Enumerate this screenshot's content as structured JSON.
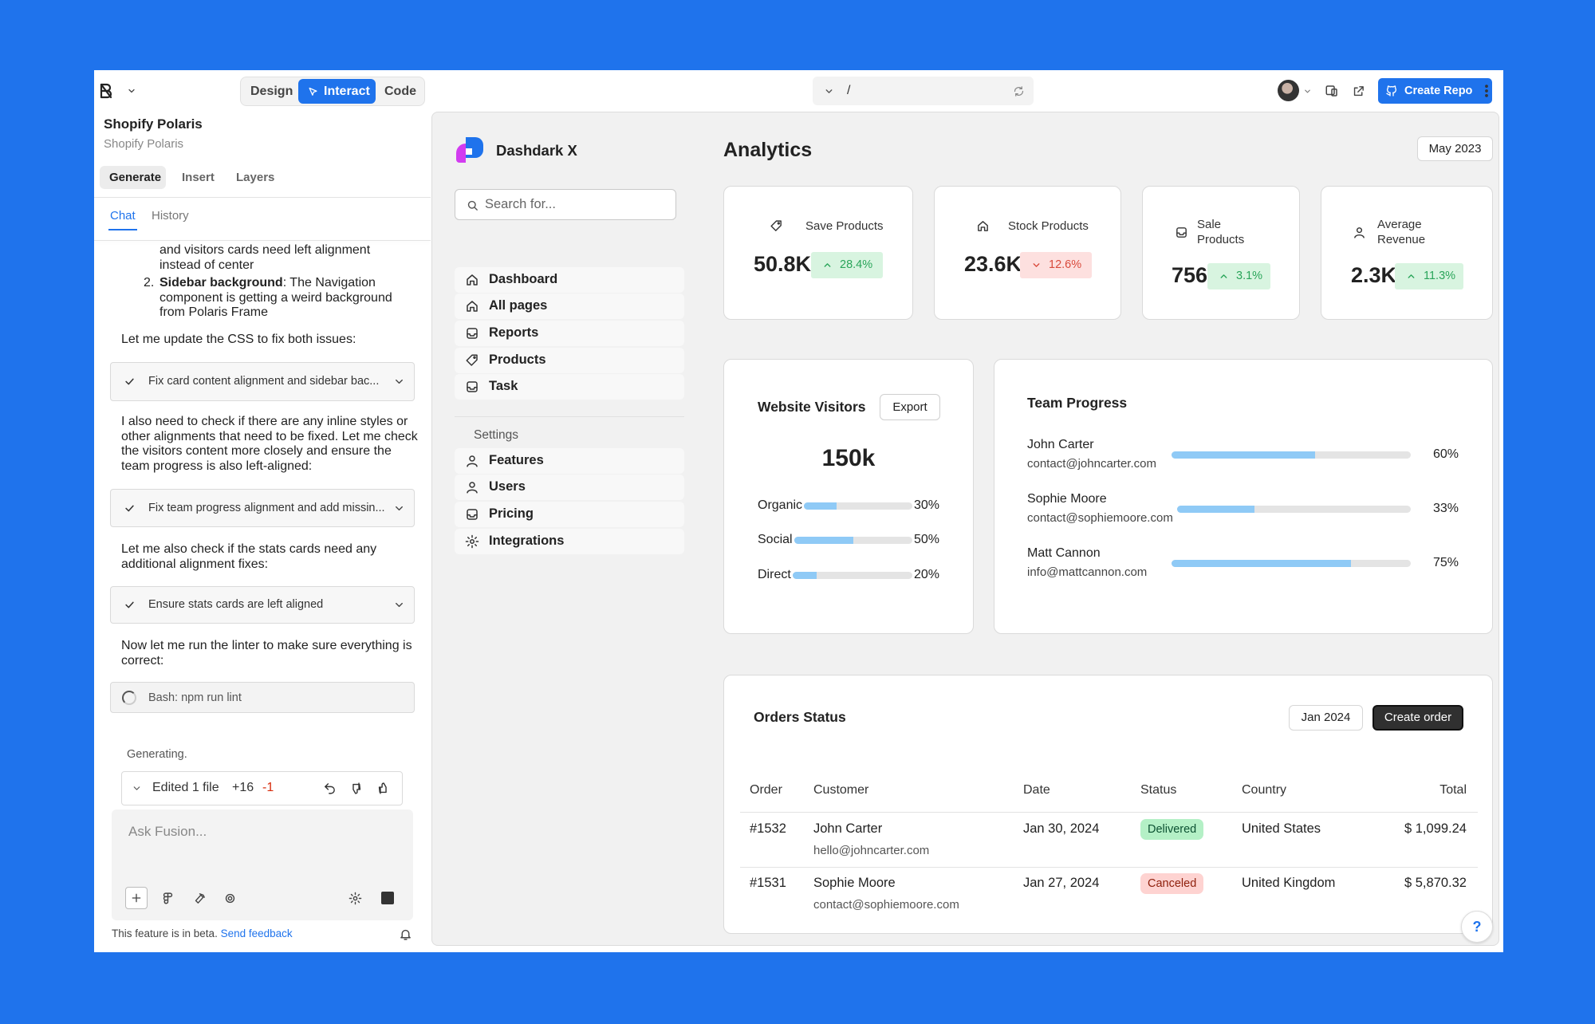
{
  "top_bar": {
    "modes": [
      "Design",
      "Interact",
      "Code"
    ],
    "url": "/",
    "create_repo": "Create Repo"
  },
  "panel": {
    "project": "Shopify Polaris",
    "project_sub": "Shopify Polaris",
    "tabs": [
      "Generate",
      "Insert",
      "Layers"
    ],
    "subtabs": [
      "Chat",
      "History"
    ],
    "list_continuation": "and visitors cards need left alignment instead of center",
    "list_item": {
      "number": "2.",
      "bold": "Sidebar background",
      "text": ": The Navigation component is getting a weird background from Polaris Frame"
    },
    "messages": [
      "Let me update the CSS to fix both issues:",
      "I also need to check if there are any inline styles or other alignments that need to be fixed. Let me check the visitors content more closely and ensure the team progress is also left-aligned:",
      "Let me also check if the stats cards need any additional alignment fixes:",
      "Now let me run the linter to make sure everything is correct:"
    ],
    "tools": [
      "Fix card content alignment and sidebar bac...",
      "Fix team progress alignment and add missin...",
      "Ensure stats cards are left aligned"
    ],
    "bash": "Bash: npm run lint",
    "status": "Generating.",
    "edit": {
      "summary": "Edited 1 file",
      "added": "+16",
      "removed": "-1"
    },
    "input_placeholder": "Ask Fusion...",
    "footer": {
      "text": "This feature is in beta.",
      "link": "Send feedback"
    }
  },
  "preview": {
    "brand": "Dashdark X",
    "search_placeholder": "Search for...",
    "nav": [
      "Dashboard",
      "All pages",
      "Reports",
      "Products",
      "Task"
    ],
    "settings_label": "Settings",
    "settings_nav": [
      "Features",
      "Users",
      "Pricing",
      "Integrations"
    ],
    "title": "Analytics",
    "period": "May 2023",
    "stats": [
      {
        "label": "Save Products",
        "value": "50.8K",
        "change": "28.4%",
        "trend": "up"
      },
      {
        "label": "Stock Products",
        "value": "23.6K",
        "change": "12.6%",
        "trend": "down"
      },
      {
        "label": "Sale Products",
        "value": "756",
        "change": "3.1%",
        "trend": "up"
      },
      {
        "label": "Average Revenue",
        "value": "2.3K",
        "change": "11.3%",
        "trend": "up"
      }
    ],
    "visitors": {
      "title": "Website Visitors",
      "export": "Export",
      "total": "150k",
      "rows": [
        {
          "name": "Organic",
          "value": 30,
          "label": "30%"
        },
        {
          "name": "Social",
          "value": 50,
          "label": "50%"
        },
        {
          "name": "Direct",
          "value": 20,
          "label": "20%"
        }
      ]
    },
    "team": {
      "title": "Team Progress",
      "members": [
        {
          "name": "John Carter",
          "email": "contact@johncarter.com",
          "value": 60,
          "label": "60%"
        },
        {
          "name": "Sophie Moore",
          "email": "contact@sophiemoore.com",
          "value": 33,
          "label": "33%"
        },
        {
          "name": "Matt Cannon",
          "email": "info@mattcannon.com",
          "value": 75,
          "label": "75%"
        }
      ]
    },
    "orders": {
      "title": "Orders Status",
      "period": "Jan 2024",
      "create": "Create order",
      "columns": [
        "Order",
        "Customer",
        "Date",
        "Status",
        "Country",
        "Total"
      ],
      "rows": [
        {
          "order": "#1532",
          "customer": "John Carter",
          "email": "hello@johncarter.com",
          "date": "Jan 30, 2024",
          "status": "Delivered",
          "tone": "success",
          "country": "United States",
          "total": "$ 1,099.24"
        },
        {
          "order": "#1531",
          "customer": "Sophie Moore",
          "email": "contact@sophiemoore.com",
          "date": "Jan 27, 2024",
          "status": "Canceled",
          "tone": "critical",
          "country": "United Kingdom",
          "total": "$ 5,870.32"
        }
      ]
    },
    "help": "?"
  }
}
